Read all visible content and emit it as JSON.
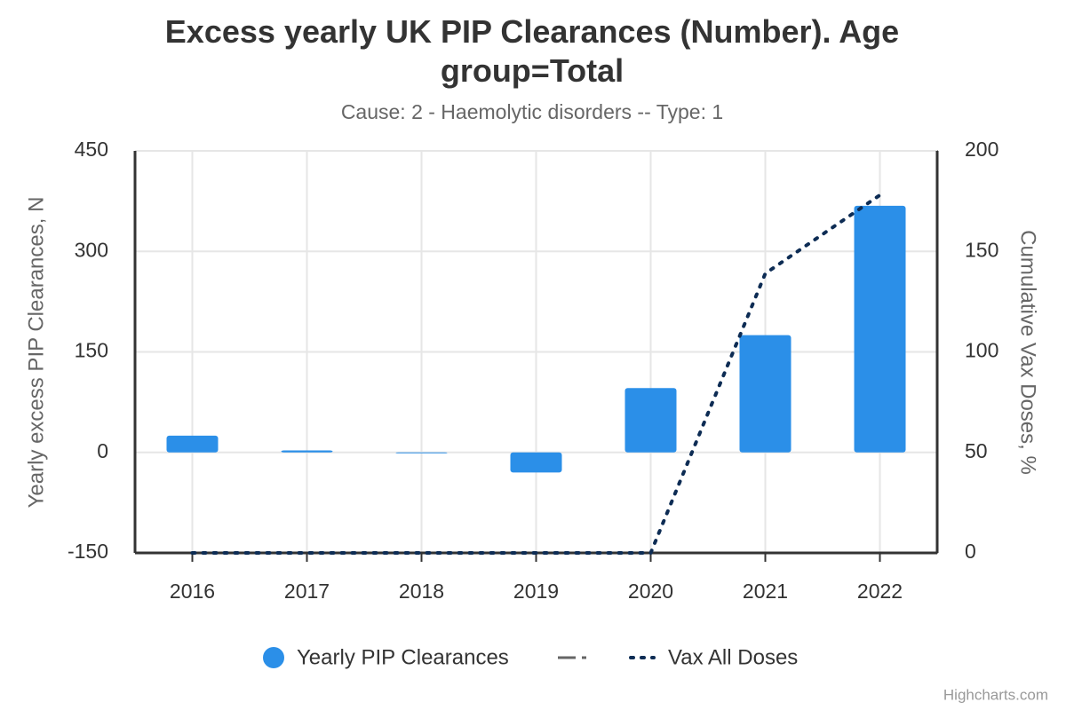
{
  "chart_data": {
    "type": "bar",
    "title": "Excess yearly UK PIP Clearances (Number). Age group=Total",
    "subtitle": "Cause: 2 - Haemolytic disorders -- Type: 1",
    "y_label": "Yearly excess PIP Clearances, N",
    "y2_label": "Cumulative Vax Doses, %",
    "credits": "Highcharts.com",
    "categories": [
      "2016",
      "2017",
      "2018",
      "2019",
      "2020",
      "2021",
      "2022"
    ],
    "series": [
      {
        "name": "Yearly PIP Clearances",
        "type": "column",
        "color": "#2b8fe8",
        "values": [
          25,
          3,
          0,
          -30,
          96,
          175,
          368
        ]
      },
      {
        "name": "Vax All Doses",
        "type": "line",
        "axis": "y2",
        "color": "#0d2c54",
        "values": [
          0,
          0,
          0,
          0,
          0,
          139,
          178
        ]
      }
    ],
    "ylim": [
      -150,
      450
    ],
    "yticks": [
      -150,
      0,
      150,
      300,
      450
    ],
    "y2lim": [
      0,
      200
    ],
    "y2ticks": [
      0,
      50,
      100,
      150,
      200
    ],
    "grid": true
  }
}
